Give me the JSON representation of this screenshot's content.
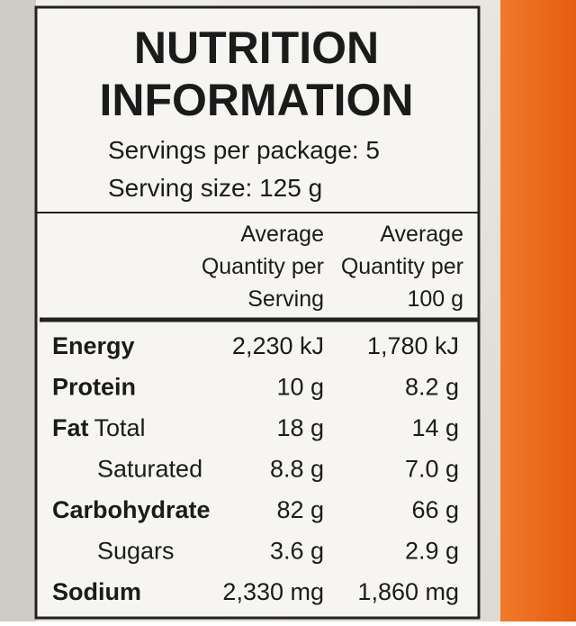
{
  "header": {
    "title": [
      "NUTRITION",
      "INFORMATION"
    ],
    "servings_per_package": "Servings per package: 5",
    "serving_size": "Serving size: 125 g"
  },
  "table": {
    "columns": [
      [
        "Average",
        "Quantity per",
        "Serving"
      ],
      [
        "Average",
        "Quantity per",
        "100 g"
      ]
    ],
    "rows": [
      {
        "name": "Energy",
        "per_serving": "2,230 kJ",
        "per_100g": "1,780 kJ"
      },
      {
        "name": "Protein",
        "per_serving": "10 g",
        "per_100g": "8.2 g"
      },
      {
        "name": "Fat",
        "qualifier": "Total",
        "per_serving": "18 g",
        "per_100g": "14 g"
      },
      {
        "sub": "Saturated",
        "per_serving": "8.8 g",
        "per_100g": "7.0 g"
      },
      {
        "name": "Carbohydrate",
        "per_serving": "82 g",
        "per_100g": "66 g"
      },
      {
        "sub": "Sugars",
        "per_serving": "3.6 g",
        "per_100g": "2.9 g"
      },
      {
        "name": "Sodium",
        "per_serving": "2,330 mg",
        "per_100g": "1,860 mg"
      }
    ]
  }
}
